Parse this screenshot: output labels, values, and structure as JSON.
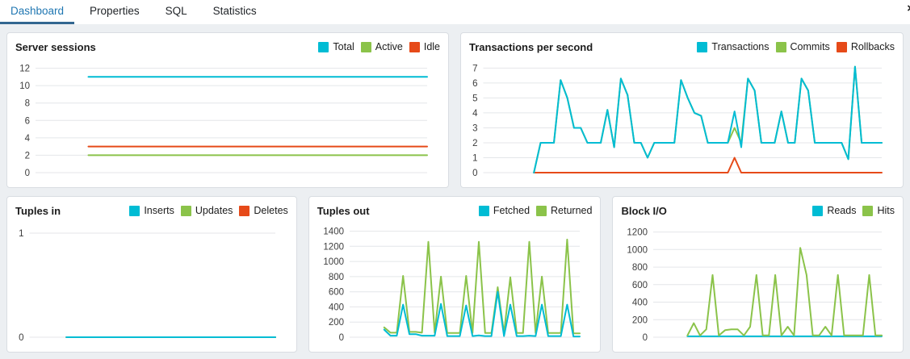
{
  "tabs": {
    "items": [
      {
        "label": "Dashboard",
        "active": true
      },
      {
        "label": "Properties",
        "active": false
      },
      {
        "label": "SQL",
        "active": false
      },
      {
        "label": "Statistics",
        "active": false
      }
    ],
    "close_glyph": "×"
  },
  "colors": {
    "cyan": "#00BCD4",
    "green": "#8BC34A",
    "red": "#E64A19",
    "tab_text": "#2077B2",
    "tab_underline": "#326690"
  },
  "panels": [
    {
      "title": "Server sessions",
      "legend": [
        {
          "label": "Total",
          "color": "cyan"
        },
        {
          "label": "Active",
          "color": "green"
        },
        {
          "label": "Idle",
          "color": "red"
        }
      ],
      "chart_data": {
        "type": "line",
        "yticks": [
          0,
          2,
          4,
          6,
          8,
          10,
          12
        ],
        "ymax": 12.7,
        "start_frac": 0.135,
        "series": [
          {
            "name": "Active",
            "color": "green",
            "values": [
              2,
              2
            ]
          },
          {
            "name": "Idle",
            "color": "red",
            "values": [
              3,
              3
            ]
          },
          {
            "name": "Total",
            "color": "cyan",
            "values": [
              11,
              11
            ]
          }
        ]
      }
    },
    {
      "title": "Transactions per second",
      "legend": [
        {
          "label": "Transactions",
          "color": "cyan"
        },
        {
          "label": "Commits",
          "color": "green"
        },
        {
          "label": "Rollbacks",
          "color": "red"
        }
      ],
      "chart_data": {
        "type": "line",
        "yticks": [
          0,
          1,
          2,
          3,
          4,
          5,
          6,
          7
        ],
        "ymax": 7.4,
        "start_frac": 0.127,
        "series": [
          {
            "name": "Commits",
            "color": "green",
            "values": [
              0,
              2,
              2,
              2,
              6.2,
              5,
              3,
              3,
              2,
              2,
              2,
              4.2,
              1.7,
              6.3,
              5.2,
              2,
              2,
              1,
              2,
              2,
              2,
              2,
              6.2,
              5,
              4,
              3.8,
              2,
              2,
              2,
              2,
              3,
              2,
              6.3,
              5.5,
              2,
              2,
              2,
              4.1,
              2,
              2,
              6.3,
              5.5,
              2,
              2,
              2,
              2,
              2,
              0.9,
              7.1,
              2,
              2,
              2,
              2
            ]
          },
          {
            "name": "Rollbacks",
            "color": "red",
            "values": [
              0,
              0,
              0,
              0,
              0,
              0,
              0,
              0,
              0,
              0,
              0,
              0,
              0,
              0,
              0,
              0,
              0,
              0,
              0,
              0,
              0,
              0,
              0,
              0,
              0,
              0,
              0,
              0,
              0,
              0,
              1,
              0,
              0,
              0,
              0,
              0,
              0,
              0,
              0,
              0,
              0,
              0,
              0,
              0,
              0,
              0,
              0,
              0,
              0,
              0,
              0,
              0,
              0
            ]
          },
          {
            "name": "Transactions",
            "color": "cyan",
            "values": [
              0,
              2,
              2,
              2,
              6.2,
              5,
              3,
              3,
              2,
              2,
              2,
              4.2,
              1.7,
              6.3,
              5.2,
              2,
              2,
              1,
              2,
              2,
              2,
              2,
              6.2,
              5,
              4,
              3.8,
              2,
              2,
              2,
              2,
              4.1,
              1.7,
              6.3,
              5.5,
              2,
              2,
              2,
              4.1,
              2,
              2,
              6.3,
              5.5,
              2,
              2,
              2,
              2,
              2,
              0.9,
              7.1,
              2,
              2,
              2,
              2
            ]
          }
        ]
      }
    },
    {
      "title": "Tuples in",
      "legend": [
        {
          "label": "Inserts",
          "color": "cyan"
        },
        {
          "label": "Updates",
          "color": "green"
        },
        {
          "label": "Deletes",
          "color": "red"
        }
      ],
      "chart_data": {
        "type": "line",
        "yticks": [
          0,
          1
        ],
        "ymax": 1.07,
        "start_frac": 0.15,
        "series": [
          {
            "name": "Deletes",
            "color": "red",
            "values": [
              0,
              0
            ]
          },
          {
            "name": "Updates",
            "color": "green",
            "values": [
              0,
              0
            ]
          },
          {
            "name": "Inserts",
            "color": "cyan",
            "values": [
              0,
              0
            ]
          }
        ]
      }
    },
    {
      "title": "Tuples out",
      "legend": [
        {
          "label": "Fetched",
          "color": "cyan"
        },
        {
          "label": "Returned",
          "color": "green"
        }
      ],
      "chart_data": {
        "type": "line",
        "yticks": [
          0,
          200,
          400,
          600,
          800,
          1000,
          1200,
          1400
        ],
        "ymax": 1470,
        "start_frac": 0.15,
        "series": [
          {
            "name": "Returned",
            "color": "green",
            "values": [
              130,
              60,
              60,
              810,
              70,
              70,
              60,
              1260,
              60,
              800,
              55,
              55,
              55,
              810,
              55,
              1260,
              55,
              55,
              660,
              55,
              790,
              55,
              55,
              1260,
              55,
              800,
              55,
              55,
              55,
              1290,
              50,
              50
            ]
          },
          {
            "name": "Fetched",
            "color": "cyan",
            "values": [
              100,
              20,
              20,
              430,
              40,
              40,
              20,
              20,
              20,
              440,
              15,
              15,
              15,
              420,
              15,
              25,
              15,
              15,
              600,
              15,
              430,
              15,
              15,
              20,
              15,
              430,
              15,
              15,
              15,
              430,
              10,
              10
            ]
          }
        ]
      }
    },
    {
      "title": "Block I/O",
      "legend": [
        {
          "label": "Reads",
          "color": "cyan"
        },
        {
          "label": "Hits",
          "color": "green"
        }
      ],
      "chart_data": {
        "type": "line",
        "yticks": [
          0,
          200,
          400,
          600,
          800,
          1000,
          1200
        ],
        "ymax": 1270,
        "start_frac": 0.15,
        "series": [
          {
            "name": "Reads",
            "color": "cyan",
            "values": [
              10,
              10,
              10,
              10,
              10,
              10,
              10,
              10,
              10,
              10,
              10,
              10,
              10,
              10,
              10,
              10,
              10,
              10,
              10,
              10,
              10,
              10,
              10,
              10,
              10,
              10,
              10,
              10,
              10,
              10,
              10,
              10
            ]
          },
          {
            "name": "Hits",
            "color": "green",
            "values": [
              20,
              160,
              20,
              90,
              710,
              20,
              80,
              90,
              90,
              20,
              120,
              710,
              20,
              20,
              710,
              20,
              120,
              20,
              1020,
              710,
              20,
              20,
              120,
              20,
              710,
              20,
              20,
              20,
              20,
              710,
              20,
              20
            ]
          }
        ]
      }
    }
  ]
}
